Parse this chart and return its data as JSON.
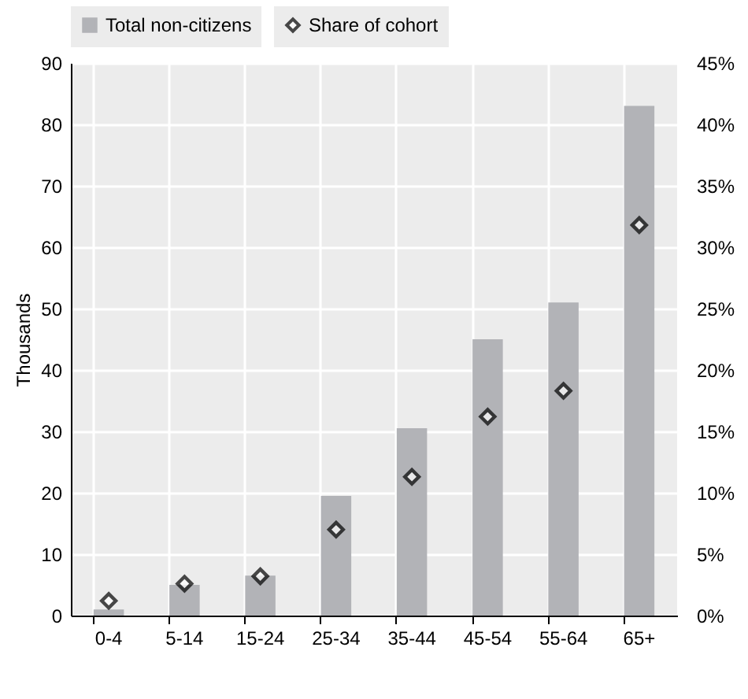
{
  "chart_data": {
    "type": "bar",
    "ylabel": "Thousands",
    "categories": [
      "0-4",
      "5-14",
      "15-24",
      "25-34",
      "35-44",
      "45-54",
      "55-64",
      "65+"
    ],
    "series": [
      {
        "name": "Total non-citizens",
        "color": "#b2b3b7",
        "values": [
          1,
          5,
          6.5,
          19.5,
          30.5,
          45,
          51,
          83
        ]
      },
      {
        "name": "Share of cohort",
        "type": "scatter",
        "axis": "y2",
        "marker": "diamond",
        "color": "#000000",
        "values": [
          1.2,
          2.6,
          3.2,
          7,
          11.3,
          16.2,
          18.3,
          31.8
        ]
      }
    ],
    "ylim": [
      0,
      90
    ],
    "yticks": [
      0,
      10,
      20,
      30,
      40,
      50,
      60,
      70,
      80,
      90
    ],
    "y2lim": [
      0,
      45
    ],
    "y2ticks": [
      {
        "value": 0,
        "label": "0%"
      },
      {
        "value": 5,
        "label": "5%"
      },
      {
        "value": 10,
        "label": "10%"
      },
      {
        "value": 15,
        "label": "15%"
      },
      {
        "value": 20,
        "label": "20%"
      },
      {
        "value": 25,
        "label": "25%"
      },
      {
        "value": 30,
        "label": "30%"
      },
      {
        "value": 35,
        "label": "35%"
      },
      {
        "value": 40,
        "label": "40%"
      },
      {
        "value": 45,
        "label": "45%"
      }
    ],
    "grid": true,
    "legend": "top"
  }
}
